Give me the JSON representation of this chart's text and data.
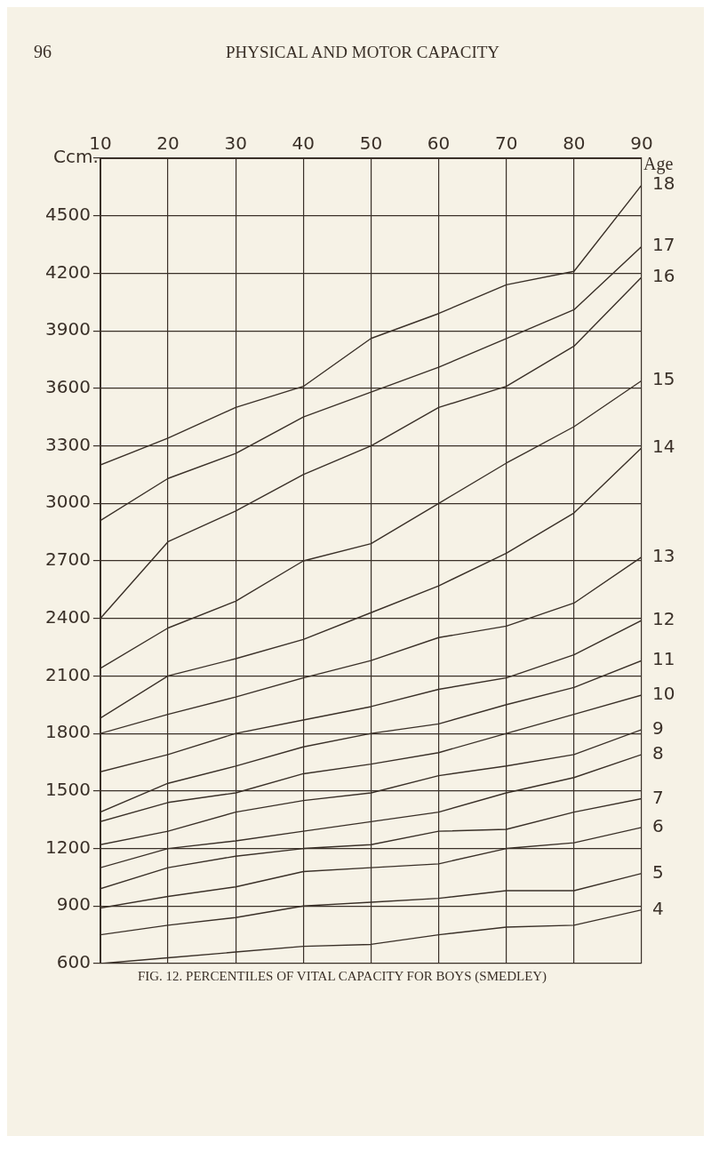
{
  "chart_data": {
    "type": "line",
    "title": "FIG. 12. PERCENTILES OF VITAL CAPACITY FOR BOYS (SMEDLEY)",
    "ylabel": "Ccm.",
    "annotations": [
      "96",
      "PHYSICAL AND MOTOR CAPACITY",
      "Age"
    ],
    "x": [
      10,
      20,
      30,
      40,
      50,
      60,
      70,
      80,
      90
    ],
    "xlim": [
      10,
      90
    ],
    "xticks": [
      10,
      20,
      30,
      40,
      50,
      60,
      70,
      80,
      90
    ],
    "ylim": [
      600,
      4800
    ],
    "yticks": [
      600,
      900,
      1200,
      1500,
      1800,
      2100,
      2400,
      2700,
      3000,
      3300,
      3600,
      3900,
      4200,
      4500,
      {
        "value": 4800,
        "label": null
      }
    ],
    "grid": true,
    "legend": false,
    "marker": "none",
    "line_style": "solid",
    "series": [
      {
        "name": "18",
        "color": "#3a3028",
        "values": [
          3200,
          3340,
          3500,
          3610,
          3860,
          3990,
          4140,
          4210,
          4660
        ]
      },
      {
        "name": "17",
        "color": "#3a3028",
        "values": [
          2910,
          3130,
          3260,
          3450,
          3580,
          3710,
          3860,
          4010,
          4340
        ]
      },
      {
        "name": "16",
        "color": "#3a3028",
        "values": [
          2400,
          2800,
          2960,
          3150,
          3300,
          3500,
          3610,
          3820,
          4180
        ]
      },
      {
        "name": "15",
        "color": "#3a3028",
        "values": [
          2140,
          2350,
          2490,
          2700,
          2790,
          3000,
          3210,
          3400,
          3640
        ]
      },
      {
        "name": "14",
        "color": "#3a3028",
        "values": [
          1880,
          2100,
          2190,
          2290,
          2430,
          2570,
          2740,
          2950,
          3290
        ]
      },
      {
        "name": "13",
        "color": "#3a3028",
        "values": [
          1800,
          1900,
          1990,
          2090,
          2180,
          2300,
          2360,
          2480,
          2720
        ]
      },
      {
        "name": "12",
        "color": "#3a3028",
        "values": [
          1600,
          1690,
          1800,
          1870,
          1940,
          2030,
          2090,
          2210,
          2390
        ]
      },
      {
        "name": "11",
        "color": "#3a3028",
        "values": [
          1390,
          1540,
          1630,
          1730,
          1800,
          1850,
          1950,
          2040,
          2180
        ]
      },
      {
        "name": "10",
        "color": "#3a3028",
        "values": [
          1340,
          1440,
          1490,
          1590,
          1640,
          1700,
          1800,
          1900,
          2000
        ]
      },
      {
        "name": "9",
        "color": "#3a3028",
        "values": [
          1220,
          1290,
          1390,
          1450,
          1490,
          1580,
          1630,
          1690,
          1820
        ]
      },
      {
        "name": "8",
        "color": "#3a3028",
        "values": [
          1100,
          1200,
          1240,
          1290,
          1340,
          1390,
          1490,
          1570,
          1690
        ]
      },
      {
        "name": "7",
        "color": "#3a3028",
        "values": [
          990,
          1100,
          1160,
          1200,
          1220,
          1290,
          1300,
          1390,
          1460
        ]
      },
      {
        "name": "6",
        "color": "#3a3028",
        "values": [
          890,
          950,
          1000,
          1080,
          1100,
          1120,
          1200,
          1230,
          1310
        ]
      },
      {
        "name": "5",
        "color": "#3a3028",
        "values": [
          750,
          800,
          840,
          900,
          920,
          940,
          980,
          980,
          1070
        ]
      },
      {
        "name": "4",
        "color": "#3a3028",
        "values": [
          600,
          630,
          660,
          690,
          700,
          750,
          790,
          800,
          880
        ]
      }
    ]
  }
}
